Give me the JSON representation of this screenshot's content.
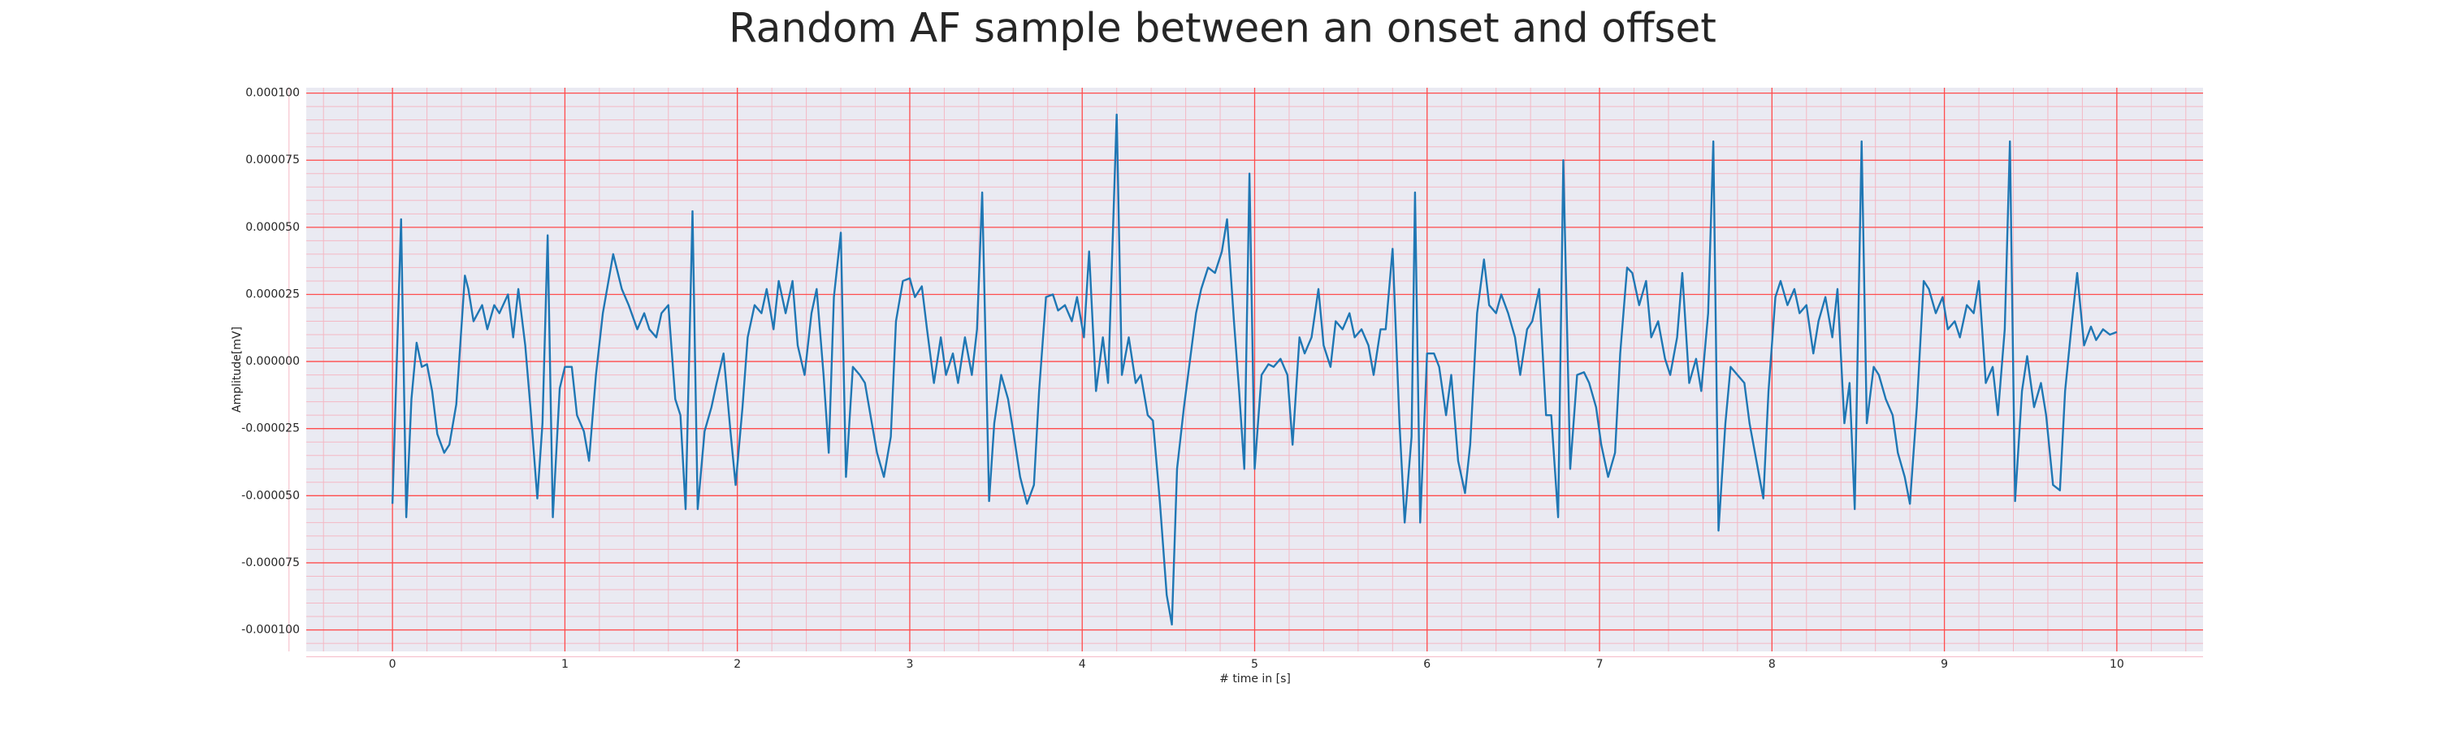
{
  "chart_data": {
    "type": "line",
    "title": "Random AF sample between an onset and offset",
    "xlabel": "# time in [s]",
    "ylabel": "Amplitude[mV]",
    "color": "#1f77b4",
    "background": "#eaeaf2",
    "grid": true,
    "grid_color": "#ff4d4d",
    "minor_grid_color": "#f4b8c4",
    "minor_divisions": 5,
    "xlim": [
      -0.5,
      10.5
    ],
    "ylim": [
      -0.000108,
      0.000102
    ],
    "xticks": [
      0,
      1,
      2,
      3,
      4,
      5,
      6,
      7,
      8,
      9,
      10
    ],
    "yticks": [
      {
        "value": 0.0001,
        "label": "0.000100"
      },
      {
        "value": 7.5e-05,
        "label": "0.000075"
      },
      {
        "value": 5e-05,
        "label": "0.000050"
      },
      {
        "value": 2.5e-05,
        "label": "0.000025"
      },
      {
        "value": 0,
        "label": "0.000000"
      },
      {
        "value": -2.5e-05,
        "label": "-0.000025"
      },
      {
        "value": -5e-05,
        "label": "-0.000050"
      },
      {
        "value": -7.5e-05,
        "label": "-0.000075"
      },
      {
        "value": -0.0001,
        "label": "-0.000100"
      }
    ],
    "x": [
      0,
      0.05,
      0.08,
      0.11,
      0.14,
      0.17,
      0.2,
      0.23,
      0.26,
      0.3,
      0.33,
      0.37,
      0.42,
      0.44,
      0.47,
      0.52,
      0.55,
      0.59,
      0.62,
      0.67,
      0.7,
      0.73,
      0.77,
      0.8,
      0.84,
      0.87,
      0.9,
      0.93,
      0.97,
      1.0,
      1.04,
      1.07,
      1.11,
      1.14,
      1.18,
      1.22,
      1.28,
      1.33,
      1.37,
      1.42,
      1.46,
      1.49,
      1.53,
      1.56,
      1.6,
      1.64,
      1.67,
      1.7,
      1.74,
      1.77,
      1.81,
      1.85,
      1.88,
      1.92,
      1.96,
      1.99,
      2.03,
      2.06,
      2.1,
      2.14,
      2.17,
      2.21,
      2.24,
      2.28,
      2.32,
      2.35,
      2.39,
      2.43,
      2.46,
      2.5,
      2.53,
      2.56,
      2.6,
      2.63,
      2.67,
      2.71,
      2.74,
      2.78,
      2.81,
      2.85,
      2.89,
      2.92,
      2.96,
      3.0,
      3.03,
      3.07,
      3.1,
      3.14,
      3.18,
      3.21,
      3.25,
      3.28,
      3.32,
      3.36,
      3.39,
      3.42,
      3.46,
      3.49,
      3.53,
      3.57,
      3.6,
      3.64,
      3.68,
      3.72,
      3.75,
      3.79,
      3.83,
      3.86,
      3.9,
      3.94,
      3.97,
      4.01,
      4.04,
      4.08,
      4.12,
      4.15,
      4.2,
      4.23,
      4.27,
      4.31,
      4.34,
      4.38,
      4.41,
      4.45,
      4.49,
      4.52,
      4.55,
      4.59,
      4.62,
      4.66,
      4.69,
      4.73,
      4.77,
      4.81,
      4.84,
      4.88,
      4.91,
      4.94,
      4.97,
      5.0,
      5.04,
      5.08,
      5.11,
      5.15,
      5.19,
      5.22,
      5.26,
      5.29,
      5.33,
      5.37,
      5.4,
      5.44,
      5.47,
      5.51,
      5.55,
      5.58,
      5.62,
      5.66,
      5.69,
      5.73,
      5.76,
      5.8,
      5.84,
      5.87,
      5.91,
      5.93,
      5.96,
      6.0,
      6.04,
      6.07,
      6.11,
      6.14,
      6.18,
      6.22,
      6.25,
      6.29,
      6.33,
      6.36,
      6.4,
      6.43,
      6.47,
      6.51,
      6.54,
      6.58,
      6.61,
      6.65,
      6.69,
      6.72,
      6.76,
      6.79,
      6.83,
      6.87,
      6.91,
      6.94,
      6.98,
      7.01,
      7.05,
      7.09,
      7.12,
      7.16,
      7.19,
      7.23,
      7.27,
      7.3,
      7.34,
      7.38,
      7.41,
      7.45,
      7.48,
      7.52,
      7.56,
      7.59,
      7.63,
      7.66,
      7.69,
      7.73,
      7.76,
      7.8,
      7.84,
      7.87,
      7.91,
      7.95,
      7.98,
      8.02,
      8.05,
      8.09,
      8.13,
      8.16,
      8.2,
      8.24,
      8.27,
      8.31,
      8.35,
      8.38,
      8.42,
      8.45,
      8.48,
      8.52,
      8.55,
      8.59,
      8.62,
      8.66,
      8.7,
      8.73,
      8.77,
      8.8,
      8.84,
      8.88,
      8.91,
      8.95,
      8.99,
      9.02,
      9.06,
      9.09,
      9.13,
      9.17,
      9.2,
      9.24,
      9.28,
      9.31,
      9.35,
      9.38,
      9.41,
      9.45,
      9.48,
      9.52,
      9.56,
      9.59,
      9.63,
      9.67,
      9.7,
      9.74,
      9.77,
      9.81,
      9.85,
      9.88,
      9.92,
      9.96,
      10.0
    ],
    "values": [
      -5.3e-05,
      5.3e-05,
      -5.8e-05,
      -1.4e-05,
      7e-06,
      -2e-06,
      -1e-06,
      -1.1e-05,
      -2.7e-05,
      -3.4e-05,
      -3.1e-05,
      -1.6e-05,
      3.2e-05,
      2.7e-05,
      1.5e-05,
      2.1e-05,
      1.2e-05,
      2.1e-05,
      1.8e-05,
      2.5e-05,
      9e-06,
      2.7e-05,
      6e-06,
      -1.7e-05,
      -5.1e-05,
      -2.3e-05,
      4.7e-05,
      -5.8e-05,
      -1e-05,
      -2e-06,
      -2e-06,
      -2e-05,
      -2.6e-05,
      -3.7e-05,
      -5e-06,
      1.8e-05,
      4e-05,
      2.7e-05,
      2.1e-05,
      1.2e-05,
      1.8e-05,
      1.2e-05,
      9e-06,
      1.8e-05,
      2.1e-05,
      -1.4e-05,
      -2e-05,
      -5.5e-05,
      5.6e-05,
      -5.5e-05,
      -2.6e-05,
      -1.7e-05,
      -8e-06,
      3e-06,
      -2.6e-05,
      -4.6e-05,
      -1.7e-05,
      9e-06,
      2.1e-05,
      1.8e-05,
      2.7e-05,
      1.2e-05,
      3e-05,
      1.8e-05,
      3e-05,
      6e-06,
      -5e-06,
      1.8e-05,
      2.7e-05,
      -5e-06,
      -3.4e-05,
      2.4e-05,
      4.8e-05,
      -4.3e-05,
      -2e-06,
      -5e-06,
      -8e-06,
      -2.3e-05,
      -3.4e-05,
      -4.3e-05,
      -2.8e-05,
      1.5e-05,
      3e-05,
      3.1e-05,
      2.4e-05,
      2.8e-05,
      1.2e-05,
      -8e-06,
      9e-06,
      -5e-06,
      3e-06,
      -8e-06,
      9e-06,
      -5e-06,
      1.2e-05,
      6.3e-05,
      -5.2e-05,
      -2.3e-05,
      -5e-06,
      -1.4e-05,
      -2.6e-05,
      -4.3e-05,
      -5.3e-05,
      -4.6e-05,
      -1.1e-05,
      2.4e-05,
      2.5e-05,
      1.9e-05,
      2.1e-05,
      1.5e-05,
      2.4e-05,
      9e-06,
      4.1e-05,
      -1.1e-05,
      9e-06,
      -8e-06,
      9.2e-05,
      -5e-06,
      9e-06,
      -8e-06,
      -5e-06,
      -2e-05,
      -2.2e-05,
      -5.2e-05,
      -8.7e-05,
      -9.8e-05,
      -4e-05,
      -1.7e-05,
      -2e-06,
      1.8e-05,
      2.7e-05,
      3.5e-05,
      3.3e-05,
      4.1e-05,
      5.3e-05,
      1.5e-05,
      -1.1e-05,
      -4e-05,
      7e-05,
      -4e-05,
      -5e-06,
      -1e-06,
      -2e-06,
      1e-06,
      -5e-06,
      -3.1e-05,
      9e-06,
      3e-06,
      9e-06,
      2.7e-05,
      6e-06,
      -2e-06,
      1.5e-05,
      1.2e-05,
      1.8e-05,
      9e-06,
      1.2e-05,
      6e-06,
      -5e-06,
      1.2e-05,
      1.2e-05,
      4.2e-05,
      -2.3e-05,
      -6e-05,
      -2.8e-05,
      6.3e-05,
      -6e-05,
      3e-06,
      3e-06,
      -2e-06,
      -2e-05,
      -5e-06,
      -3.7e-05,
      -4.9e-05,
      -3.1e-05,
      1.8e-05,
      3.8e-05,
      2.1e-05,
      1.8e-05,
      2.5e-05,
      1.8e-05,
      9e-06,
      -5e-06,
      1.2e-05,
      1.5e-05,
      2.7e-05,
      -2e-05,
      -2e-05,
      -5.8e-05,
      7.5e-05,
      -4e-05,
      -5e-06,
      -4e-06,
      -8e-06,
      -1.7e-05,
      -3.1e-05,
      -4.3e-05,
      -3.4e-05,
      3e-06,
      3.5e-05,
      3.3e-05,
      2.1e-05,
      3e-05,
      9e-06,
      1.5e-05,
      1e-06,
      -5e-06,
      9e-06,
      3.3e-05,
      -8e-06,
      1e-06,
      -1.1e-05,
      1.8e-05,
      8.2e-05,
      -6.3e-05,
      -2.3e-05,
      -2e-06,
      -5e-06,
      -8e-06,
      -2.3e-05,
      -3.7e-05,
      -5.1e-05,
      -1.1e-05,
      2.4e-05,
      3e-05,
      2.1e-05,
      2.7e-05,
      1.8e-05,
      2.1e-05,
      3e-06,
      1.5e-05,
      2.4e-05,
      9e-06,
      2.7e-05,
      -2.3e-05,
      -8e-06,
      -5.5e-05,
      8.2e-05,
      -2.3e-05,
      -2e-06,
      -5e-06,
      -1.4e-05,
      -2e-05,
      -3.4e-05,
      -4.3e-05,
      -5.3e-05,
      -1.7e-05,
      3e-05,
      2.7e-05,
      1.8e-05,
      2.4e-05,
      1.2e-05,
      1.5e-05,
      9e-06,
      2.1e-05,
      1.8e-05,
      3e-05,
      -8e-06,
      -2e-06,
      -2e-05,
      1.2e-05,
      8.2e-05,
      -5.2e-05,
      -1.1e-05,
      2e-06,
      -1.7e-05,
      -8e-06,
      -2e-05,
      -4.6e-05,
      -4.8e-05,
      -1.1e-05,
      1.5e-05,
      3.3e-05,
      6e-06,
      1.3e-05,
      8e-06,
      1.2e-05,
      1e-05,
      1.1e-05
    ]
  }
}
